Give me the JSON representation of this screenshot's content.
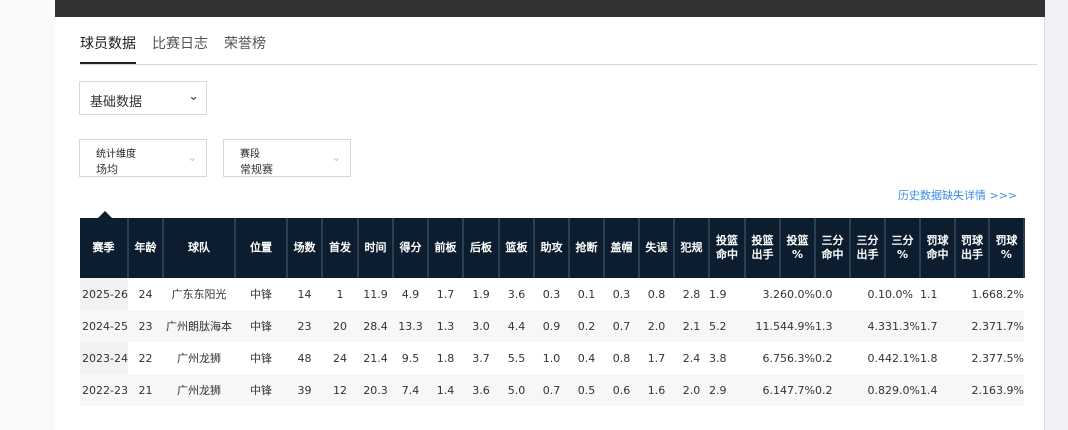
{
  "tabs": [
    {
      "label": "球员数据",
      "active": true
    },
    {
      "label": "比赛日志"
    },
    {
      "label": "荣誉榜"
    }
  ],
  "data_type_select": {
    "value": "基础数据",
    "icon": "chevron-down-icon"
  },
  "filters": [
    {
      "label": "统计维度",
      "value": "场均"
    },
    {
      "label": "赛段",
      "value": "常规赛"
    }
  ],
  "history_link": "历史数据缺失详情 >>>",
  "colors": {
    "header_bg": "#0b1d2e",
    "link": "#3a8ee6",
    "topbar": "#333333"
  },
  "table": {
    "headers": [
      "赛季",
      "年龄",
      "球队",
      "位置",
      "场数",
      "首发",
      "时间",
      "得分",
      "前板",
      "后板",
      "篮板",
      "助攻",
      "抢断",
      "盖帽",
      "失误",
      "犯规",
      "投篮\n命中",
      "投篮\n出手",
      "投篮\n%",
      "三分\n命中",
      "三分\n出手",
      "三分\n%",
      "罚球\n命中",
      "罚球\n出手",
      "罚球\n%"
    ],
    "rows": [
      [
        "2025-26",
        "24",
        "广东东阳光",
        "中锋",
        "14",
        "1",
        "11.9",
        "4.9",
        "1.7",
        "1.9",
        "3.6",
        "0.3",
        "0.1",
        "0.3",
        "0.8",
        "2.8",
        "1.9",
        "3.2",
        "60.0%",
        "0.0",
        "0.1",
        "0.0%",
        "1.1",
        "1.6",
        "68.2%"
      ],
      [
        "2024-25",
        "23",
        "广州朗肽海本",
        "中锋",
        "23",
        "20",
        "28.4",
        "13.3",
        "1.3",
        "3.0",
        "4.4",
        "0.9",
        "0.2",
        "0.7",
        "2.0",
        "2.1",
        "5.2",
        "11.5",
        "44.9%",
        "1.3",
        "4.3",
        "31.3%",
        "1.7",
        "2.3",
        "71.7%"
      ],
      [
        "2023-24",
        "22",
        "广州龙狮",
        "中锋",
        "48",
        "24",
        "21.4",
        "9.5",
        "1.8",
        "3.7",
        "5.5",
        "1.0",
        "0.4",
        "0.8",
        "1.7",
        "2.4",
        "3.8",
        "6.7",
        "56.3%",
        "0.2",
        "0.4",
        "42.1%",
        "1.8",
        "2.3",
        "77.5%"
      ],
      [
        "2022-23",
        "21",
        "广州龙狮",
        "中锋",
        "39",
        "12",
        "20.3",
        "7.4",
        "1.4",
        "3.6",
        "5.0",
        "0.7",
        "0.5",
        "0.6",
        "1.6",
        "2.0",
        "2.9",
        "6.1",
        "47.7%",
        "0.2",
        "0.8",
        "29.0%",
        "1.4",
        "2.1",
        "63.9%"
      ]
    ]
  }
}
